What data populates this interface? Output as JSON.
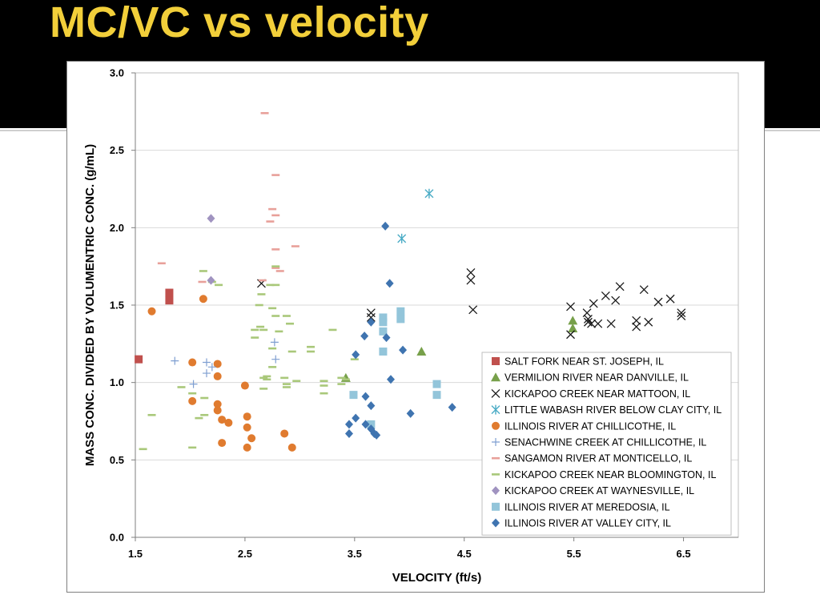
{
  "slide": {
    "title": "MC/VC vs velocity"
  },
  "colors": {
    "header_bg": "#000000",
    "title": "#f2cf3a",
    "salt_fork": "#c0504d",
    "vermilion": "#77a04a",
    "kickapoo_mattoon": "#1a1a1a",
    "little_wabash": "#4bacc6",
    "illinois_chillicothe": "#e07b2f",
    "senachwine": "#7f9fd1",
    "sangamon": "#e8a09a",
    "kickapoo_bloomington": "#a9c87a",
    "kickapoo_waynesville": "#a093c0",
    "illinois_meredosia": "#93c5da",
    "illinois_valley_city": "#3f74b0"
  },
  "chart_data": {
    "type": "scatter",
    "title": "",
    "xlabel": "VELOCITY (ft/s)",
    "ylabel": "MASS CONC. DIVIDED BY VOLUMENTRIC CONC. (g/mL)",
    "xlim": [
      1.5,
      7.0
    ],
    "ylim": [
      0.0,
      3.0
    ],
    "x_ticks": [
      "1.5",
      "2.5",
      "3.5",
      "4.5",
      "5.5",
      "6.5"
    ],
    "x_tick_values": [
      1.5,
      2.5,
      3.5,
      4.5,
      5.5,
      6.5
    ],
    "y_ticks": [
      "0.0",
      "0.5",
      "1.0",
      "1.5",
      "2.0",
      "2.5",
      "3.0"
    ],
    "y_tick_values": [
      0.0,
      0.5,
      1.0,
      1.5,
      2.0,
      2.5,
      3.0
    ],
    "grid": "horizontal",
    "legend_position": "bottom-right",
    "series": [
      {
        "name": "SALT FORK NEAR ST. JOSEPH, IL",
        "marker": "square",
        "color": "#c0504d",
        "points": [
          [
            1.53,
            1.15
          ],
          [
            1.81,
            1.58
          ],
          [
            1.81,
            1.53
          ]
        ]
      },
      {
        "name": "VERMILION RIVER NEAR DANVILLE, IL",
        "marker": "triangle",
        "color": "#77a04a",
        "points": [
          [
            3.42,
            1.03
          ],
          [
            4.11,
            1.2
          ],
          [
            5.49,
            1.4
          ],
          [
            5.49,
            1.35
          ]
        ]
      },
      {
        "name": "KICKAPOO CREEK NEAR MATTOON, IL",
        "marker": "x",
        "color": "#1a1a1a",
        "points": [
          [
            2.65,
            1.64
          ],
          [
            3.65,
            1.45
          ],
          [
            3.65,
            1.42
          ],
          [
            4.56,
            1.71
          ],
          [
            4.56,
            1.66
          ],
          [
            4.58,
            1.47
          ],
          [
            5.47,
            1.49
          ],
          [
            5.47,
            1.31
          ],
          [
            5.62,
            1.45
          ],
          [
            5.63,
            1.41
          ],
          [
            5.63,
            1.39
          ],
          [
            5.66,
            1.38
          ],
          [
            5.68,
            1.51
          ],
          [
            5.72,
            1.38
          ],
          [
            5.79,
            1.56
          ],
          [
            5.84,
            1.38
          ],
          [
            5.88,
            1.53
          ],
          [
            5.92,
            1.62
          ],
          [
            6.07,
            1.4
          ],
          [
            6.07,
            1.36
          ],
          [
            6.14,
            1.6
          ],
          [
            6.18,
            1.39
          ],
          [
            6.27,
            1.52
          ],
          [
            6.38,
            1.54
          ],
          [
            6.48,
            1.45
          ],
          [
            6.48,
            1.43
          ]
        ]
      },
      {
        "name": "LITTLE WABASH RIVER BELOW CLAY CITY, IL",
        "marker": "asterisk",
        "color": "#4bacc6",
        "points": [
          [
            3.93,
            1.93
          ],
          [
            4.18,
            2.22
          ]
        ]
      },
      {
        "name": "ILLINOIS RIVER AT CHILLICOTHE, IL",
        "marker": "circle",
        "color": "#e07b2f",
        "points": [
          [
            1.65,
            1.46
          ],
          [
            2.02,
            1.13
          ],
          [
            2.02,
            0.88
          ],
          [
            2.12,
            1.54
          ],
          [
            2.25,
            1.12
          ],
          [
            2.25,
            1.04
          ],
          [
            2.25,
            0.86
          ],
          [
            2.25,
            0.82
          ],
          [
            2.29,
            0.76
          ],
          [
            2.29,
            0.61
          ],
          [
            2.35,
            0.74
          ],
          [
            2.5,
            0.98
          ],
          [
            2.52,
            0.78
          ],
          [
            2.52,
            0.71
          ],
          [
            2.52,
            0.58
          ],
          [
            2.56,
            0.64
          ],
          [
            2.86,
            0.67
          ],
          [
            2.93,
            0.58
          ]
        ]
      },
      {
        "name": "SENACHWINE CREEK AT CHILLICOTHE, IL",
        "marker": "plus",
        "color": "#7f9fd1",
        "points": [
          [
            1.86,
            1.14
          ],
          [
            2.03,
            0.99
          ],
          [
            2.15,
            1.13
          ],
          [
            2.15,
            1.06
          ],
          [
            2.2,
            1.1
          ],
          [
            2.77,
            1.26
          ],
          [
            2.78,
            1.15
          ]
        ]
      },
      {
        "name": "SANGAMON RIVER AT MONTICELLO, IL",
        "marker": "dash",
        "color": "#e8a09a",
        "points": [
          [
            1.74,
            1.77
          ],
          [
            2.11,
            1.65
          ],
          [
            2.68,
            2.74
          ],
          [
            2.73,
            2.04
          ],
          [
            2.75,
            2.12
          ],
          [
            2.78,
            2.34
          ],
          [
            2.78,
            2.08
          ],
          [
            2.78,
            1.86
          ],
          [
            2.78,
            1.74
          ],
          [
            2.82,
            1.72
          ],
          [
            2.96,
            1.88
          ],
          [
            2.66,
            1.66
          ]
        ]
      },
      {
        "name": "KICKAPOO CREEK NEAR BLOOMINGTON, IL",
        "marker": "dash",
        "color": "#a9c87a",
        "points": [
          [
            1.57,
            0.57
          ],
          [
            1.65,
            0.79
          ],
          [
            1.92,
            0.97
          ],
          [
            2.02,
            0.93
          ],
          [
            2.02,
            0.58
          ],
          [
            2.08,
            0.77
          ],
          [
            2.13,
            0.9
          ],
          [
            2.13,
            0.79
          ],
          [
            2.12,
            1.72
          ],
          [
            2.2,
            1.65
          ],
          [
            2.26,
            1.63
          ],
          [
            2.59,
            1.34
          ],
          [
            2.59,
            1.29
          ],
          [
            2.63,
            1.5
          ],
          [
            2.64,
            1.36
          ],
          [
            2.65,
            1.57
          ],
          [
            2.67,
            1.34
          ],
          [
            2.67,
            1.03
          ],
          [
            2.67,
            0.96
          ],
          [
            2.7,
            1.04
          ],
          [
            2.7,
            1.02
          ],
          [
            2.73,
            1.63
          ],
          [
            2.75,
            1.48
          ],
          [
            2.75,
            1.22
          ],
          [
            2.75,
            1.1
          ],
          [
            2.78,
            1.75
          ],
          [
            2.78,
            1.63
          ],
          [
            2.78,
            1.43
          ],
          [
            2.81,
            1.33
          ],
          [
            2.86,
            1.03
          ],
          [
            2.88,
            0.97
          ],
          [
            2.88,
            0.99
          ],
          [
            2.88,
            1.43
          ],
          [
            2.91,
            1.38
          ],
          [
            2.93,
            1.2
          ],
          [
            2.97,
            1.01
          ],
          [
            3.1,
            1.23
          ],
          [
            3.1,
            1.2
          ],
          [
            3.22,
            1.01
          ],
          [
            3.22,
            0.98
          ],
          [
            3.22,
            0.93
          ],
          [
            3.3,
            1.34
          ],
          [
            3.38,
            1.03
          ],
          [
            3.38,
            0.99
          ],
          [
            3.42,
            1.02
          ],
          [
            3.5,
            1.15
          ]
        ]
      },
      {
        "name": "KICKAPOO CREEK AT WAYNESVILLE, IL",
        "marker": "diamond",
        "color": "#a093c0",
        "points": [
          [
            2.19,
            2.06
          ],
          [
            2.19,
            1.66
          ]
        ]
      },
      {
        "name": "ILLINOIS RIVER AT MEREDOSIA, IL",
        "marker": "square",
        "color": "#93c5da",
        "points": [
          [
            3.49,
            0.92
          ],
          [
            3.65,
            0.73
          ],
          [
            3.76,
            1.42
          ],
          [
            3.76,
            1.39
          ],
          [
            3.76,
            1.33
          ],
          [
            3.76,
            1.2
          ],
          [
            3.92,
            1.46
          ],
          [
            3.92,
            1.41
          ],
          [
            4.25,
            0.99
          ],
          [
            4.25,
            0.92
          ]
        ]
      },
      {
        "name": "ILLINOIS RIVER AT VALLEY CITY, IL",
        "marker": "diamond",
        "color": "#3f74b0",
        "points": [
          [
            3.45,
            0.73
          ],
          [
            3.45,
            0.67
          ],
          [
            3.51,
            0.77
          ],
          [
            3.51,
            1.18
          ],
          [
            3.59,
            1.3
          ],
          [
            3.6,
            0.91
          ],
          [
            3.6,
            0.73
          ],
          [
            3.65,
            1.39
          ],
          [
            3.65,
            0.85
          ],
          [
            3.65,
            0.7
          ],
          [
            3.68,
            0.67
          ],
          [
            3.7,
            0.66
          ],
          [
            3.78,
            2.01
          ],
          [
            3.79,
            1.29
          ],
          [
            3.82,
            1.64
          ],
          [
            3.83,
            1.02
          ],
          [
            3.94,
            1.21
          ],
          [
            4.01,
            0.8
          ],
          [
            4.39,
            0.84
          ]
        ]
      }
    ]
  }
}
